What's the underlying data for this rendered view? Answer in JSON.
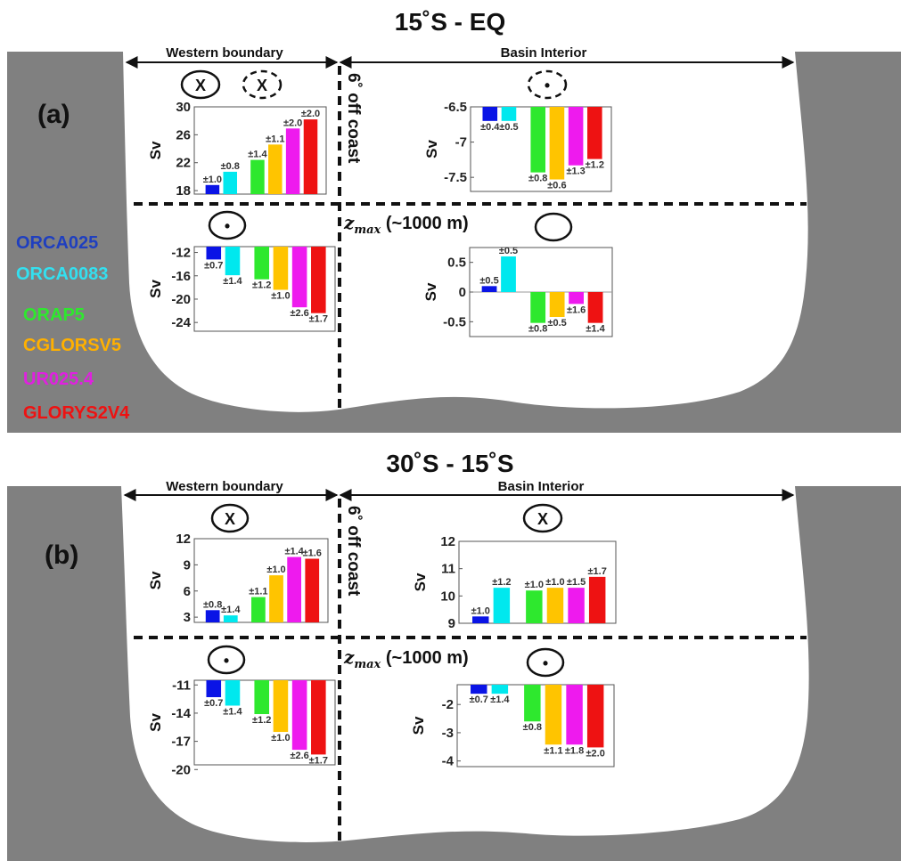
{
  "colors": {
    "ORCA025": "#0a14e6",
    "ORCA0083": "#00e8ee",
    "ORAP5": "#2ee82e",
    "CGLORSV5": "#ffc400",
    "UR025.4": "#ee1aee",
    "GLORYS2V4": "#ee1212",
    "land": "#808080"
  },
  "legend": [
    {
      "label": "ORCA025",
      "color": "#1f3fbf"
    },
    {
      "label": "ORCA0083",
      "color": "#33e0f0"
    },
    {
      "label": "ORAP5",
      "color": "#2ee82e"
    },
    {
      "label": "CGLORSV5",
      "color": "#ffb000"
    },
    {
      "label": "UR025.4",
      "color": "#e020e0"
    },
    {
      "label": "GLORYS2V4",
      "color": "#ee1212"
    }
  ],
  "panels": [
    {
      "title": "15˚S - EQ",
      "label": "(a)",
      "western_header": "Western boundary",
      "interior_header": "Basin Interior",
      "coast_label": "6˚ off coast",
      "zmax_symbol": "z",
      "zmax_sub": "max",
      "zmax_text": " (~1000 m)",
      "symbols": {
        "west_upper": [
          "X",
          "X"
        ],
        "interior_upper": [
          "•"
        ],
        "west_lower": [
          "•"
        ],
        "interior_lower": [
          ""
        ]
      }
    },
    {
      "title": "30˚S - 15˚S",
      "label": "(b)",
      "western_header": "Western boundary",
      "interior_header": "Basin Interior",
      "coast_label": "6˚ off coast",
      "zmax_symbol": "z",
      "zmax_sub": "max",
      "zmax_text": " (~1000 m)",
      "symbols": {
        "west_upper": [
          "X"
        ],
        "interior_upper": [
          "X"
        ],
        "west_lower": [
          "•"
        ],
        "interior_lower": [
          "•"
        ]
      }
    }
  ],
  "chart_data": [
    {
      "id": "a-west-upper",
      "type": "bar",
      "ylabel": "Sv",
      "ylim": [
        17.5,
        30
      ],
      "yticks": [
        18,
        22,
        26,
        30
      ],
      "series": [
        {
          "name": "ORCA025",
          "value": 18.8,
          "err": "±1.0"
        },
        {
          "name": "ORCA0083",
          "value": 20.7,
          "err": "±0.8"
        },
        {
          "name": "ORAP5",
          "value": 22.4,
          "err": "±1.4"
        },
        {
          "name": "CGLORSV5",
          "value": 24.6,
          "err": "±1.1"
        },
        {
          "name": "UR025.4",
          "value": 26.9,
          "err": "±2.0"
        },
        {
          "name": "GLORYS2V4",
          "value": 28.2,
          "err": "±2.0"
        }
      ]
    },
    {
      "id": "a-int-upper",
      "type": "bar",
      "ylabel": "Sv",
      "ylim": [
        -7.7,
        -6.5
      ],
      "yticks": [
        -6.5,
        -7,
        -7.5
      ],
      "series": [
        {
          "name": "ORCA025",
          "value": -6.7,
          "err": "±0.4"
        },
        {
          "name": "ORCA0083",
          "value": -6.7,
          "err": "±0.5"
        },
        {
          "name": "ORAP5",
          "value": -7.43,
          "err": "±0.8"
        },
        {
          "name": "CGLORSV5",
          "value": -7.53,
          "err": "±0.6"
        },
        {
          "name": "UR025.4",
          "value": -7.33,
          "err": "±1.3"
        },
        {
          "name": "GLORYS2V4",
          "value": -7.24,
          "err": "±1.2"
        }
      ]
    },
    {
      "id": "a-west-lower",
      "type": "bar",
      "ylabel": "Sv",
      "ylim": [
        -25.5,
        -11
      ],
      "yticks": [
        -12,
        -16,
        -20,
        -24
      ],
      "series": [
        {
          "name": "ORCA025",
          "value": -13.2,
          "err": "±0.7"
        },
        {
          "name": "ORCA0083",
          "value": -15.9,
          "err": "±1.4"
        },
        {
          "name": "ORAP5",
          "value": -16.6,
          "err": "±1.2"
        },
        {
          "name": "CGLORSV5",
          "value": -18.4,
          "err": "±1.0"
        },
        {
          "name": "UR025.4",
          "value": -21.4,
          "err": "±2.6"
        },
        {
          "name": "GLORYS2V4",
          "value": -22.4,
          "err": "±1.7"
        }
      ]
    },
    {
      "id": "a-int-lower",
      "type": "bar",
      "ylabel": "Sv",
      "ylim": [
        -0.75,
        0.75
      ],
      "yticks": [
        0.5,
        0,
        -0.5
      ],
      "series": [
        {
          "name": "ORCA025",
          "value": 0.1,
          "err": "±0.5"
        },
        {
          "name": "ORCA0083",
          "value": 0.6,
          "err": "±0.5"
        },
        {
          "name": "ORAP5",
          "value": -0.52,
          "err": "±0.8"
        },
        {
          "name": "CGLORSV5",
          "value": -0.42,
          "err": "±0.5"
        },
        {
          "name": "UR025.4",
          "value": -0.2,
          "err": "±1.6"
        },
        {
          "name": "GLORYS2V4",
          "value": -0.52,
          "err": "±1.4"
        }
      ]
    },
    {
      "id": "b-west-upper",
      "type": "bar",
      "ylabel": "Sv",
      "ylim": [
        2.4,
        12
      ],
      "yticks": [
        3,
        6,
        9,
        12
      ],
      "series": [
        {
          "name": "ORCA025",
          "value": 3.8,
          "err": "±0.8"
        },
        {
          "name": "ORCA0083",
          "value": 3.2,
          "err": "±1.4"
        },
        {
          "name": "ORAP5",
          "value": 5.3,
          "err": "±1.1"
        },
        {
          "name": "CGLORSV5",
          "value": 7.8,
          "err": "±1.0"
        },
        {
          "name": "UR025.4",
          "value": 9.9,
          "err": "±1.4"
        },
        {
          "name": "GLORYS2V4",
          "value": 9.7,
          "err": "±1.6"
        }
      ]
    },
    {
      "id": "b-int-upper",
      "type": "bar",
      "ylabel": "Sv",
      "ylim": [
        9,
        12
      ],
      "yticks": [
        9,
        10,
        11,
        12
      ],
      "series": [
        {
          "name": "ORCA025",
          "value": 9.25,
          "err": "±1.0"
        },
        {
          "name": "ORCA0083",
          "value": 10.3,
          "err": "±1.2"
        },
        {
          "name": "ORAP5",
          "value": 10.2,
          "err": "±1.0"
        },
        {
          "name": "CGLORSV5",
          "value": 10.3,
          "err": "±1.0"
        },
        {
          "name": "UR025.4",
          "value": 10.3,
          "err": "±1.5"
        },
        {
          "name": "GLORYS2V4",
          "value": 10.7,
          "err": "±1.7"
        }
      ]
    },
    {
      "id": "b-west-lower",
      "type": "bar",
      "ylabel": "Sv",
      "ylim": [
        -19.5,
        -10.5
      ],
      "yticks": [
        -11,
        -14,
        -17,
        -20
      ],
      "series": [
        {
          "name": "ORCA025",
          "value": -12.3,
          "err": "±0.7"
        },
        {
          "name": "ORCA0083",
          "value": -13.2,
          "err": "±1.4"
        },
        {
          "name": "ORAP5",
          "value": -14.1,
          "err": "±1.2"
        },
        {
          "name": "CGLORSV5",
          "value": -16.0,
          "err": "±1.0"
        },
        {
          "name": "UR025.4",
          "value": -17.9,
          "err": "±2.6"
        },
        {
          "name": "GLORYS2V4",
          "value": -18.4,
          "err": "±1.7"
        }
      ]
    },
    {
      "id": "b-int-lower",
      "type": "bar",
      "ylabel": "Sv",
      "ylim": [
        -4.2,
        -1.3
      ],
      "yticks": [
        -2,
        -3,
        -4
      ],
      "series": [
        {
          "name": "ORCA025",
          "value": -1.62,
          "err": "±0.7"
        },
        {
          "name": "ORCA0083",
          "value": -1.62,
          "err": "±1.4"
        },
        {
          "name": "ORAP5",
          "value": -2.6,
          "err": "±0.8"
        },
        {
          "name": "CGLORSV5",
          "value": -3.42,
          "err": "±1.1"
        },
        {
          "name": "UR025.4",
          "value": -3.42,
          "err": "±1.8"
        },
        {
          "name": "GLORYS2V4",
          "value": -3.52,
          "err": "±2.0"
        }
      ]
    }
  ]
}
